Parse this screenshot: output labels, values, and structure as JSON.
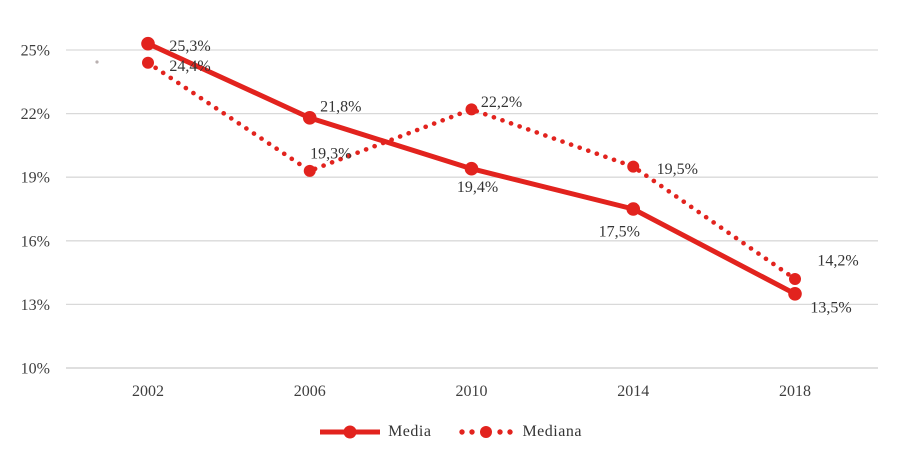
{
  "chart_data": {
    "type": "line",
    "title": "",
    "xlabel": "",
    "ylabel": "",
    "x_labels": [
      "2002",
      "2006",
      "2010",
      "2014",
      "2018"
    ],
    "series": [
      {
        "name": "Media",
        "style": "solid",
        "values": [
          25.3,
          21.8,
          19.4,
          17.5,
          13.5
        ],
        "point_labels": [
          "25,3%",
          "21,8%",
          "19,4%",
          "17,5%",
          "13,5%"
        ]
      },
      {
        "name": "Mediana",
        "style": "dotted",
        "values": [
          24.4,
          19.3,
          22.2,
          19.5,
          14.2
        ],
        "point_labels": [
          "24,4%",
          "19,3%",
          "22,2%",
          "19,5%",
          "14,2%"
        ]
      }
    ],
    "y_ticks": {
      "values": [
        25,
        22,
        19,
        16,
        13,
        10
      ],
      "labels": [
        "25%",
        "22%",
        "19%",
        "16%",
        "13%",
        "10%"
      ]
    },
    "ylim": [
      10,
      25
    ],
    "grid": "horizontal",
    "legend": {
      "position": "bottom-center",
      "items": [
        "Media",
        "Mediana"
      ]
    },
    "colors": {
      "series": "#e2231e",
      "gridline": "#d9d9d9",
      "axis_line": "#cccccc",
      "tick_text": "#3e3e3e",
      "label_text": "#343434"
    },
    "label_offsets": {
      "Media": [
        [
          42,
          2
        ],
        [
          31,
          -12
        ],
        [
          6,
          18
        ],
        [
          -14,
          22
        ],
        [
          36,
          13
        ]
      ],
      "Mediana": [
        [
          42,
          3
        ],
        [
          21,
          -18
        ],
        [
          30,
          -8
        ],
        [
          44,
          2
        ],
        [
          43,
          -19
        ]
      ]
    }
  }
}
